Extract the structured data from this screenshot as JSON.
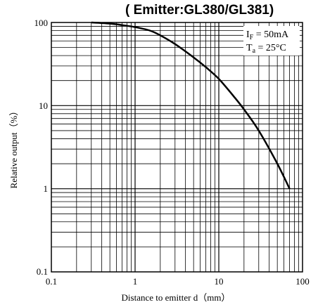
{
  "chart_data": {
    "type": "line",
    "title": "( Emitter:GL380/GL381)",
    "xlabel": "Distance to emitter d（mm）",
    "ylabel": "Relative output（%）",
    "x_scale": "log",
    "y_scale": "log",
    "xlim": [
      0.1,
      100
    ],
    "ylim": [
      0.1,
      100
    ],
    "x_ticks": [
      "0.1",
      "1",
      "10",
      "100"
    ],
    "y_ticks": [
      "100",
      "10",
      "1",
      "0.1"
    ],
    "grid": true,
    "conditions": {
      "if_label": "I",
      "if_sub": "F",
      "if_value": " = 50mA",
      "ta_label": "T",
      "ta_sub": "a",
      "ta_value": " = 25°C"
    },
    "series": [
      {
        "x": [
          0.3,
          0.5,
          0.7,
          1,
          1.5,
          2,
          3,
          5,
          7,
          10,
          15,
          20,
          30,
          50,
          70
        ],
        "y": [
          100,
          97,
          93,
          88,
          80,
          70,
          55,
          38,
          29,
          21,
          13,
          9,
          5,
          2,
          1
        ]
      }
    ],
    "line_color": "#000000"
  }
}
